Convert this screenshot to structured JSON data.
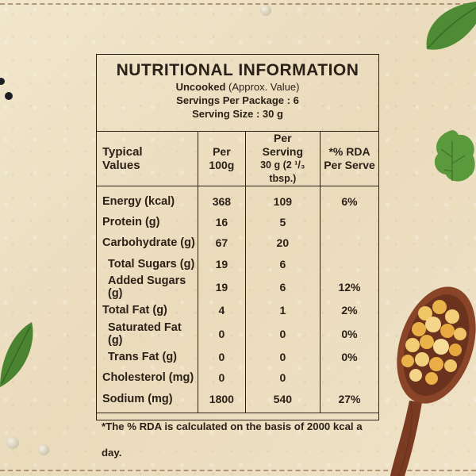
{
  "panel": {
    "title": "NUTRITIONAL INFORMATION",
    "uncooked_label": "Uncooked",
    "approx_label": "(Approx. Value)",
    "servings_per_package": "Servings Per Package : 6",
    "serving_size": "Serving Size : 30 g"
  },
  "table": {
    "headers": {
      "typical_line1": "Typical",
      "typical_line2": "Values",
      "per100_line1": "Per",
      "per100_line2": "100g",
      "serving_line1": "Per",
      "serving_line2": "Serving",
      "serving_line3": "30 g (2 ¹/₃ tbsp.)",
      "rda_line1": "*% RDA",
      "rda_line2": "Per Serve"
    },
    "rows": [
      {
        "label": "Energy (kcal)",
        "per100": "368",
        "serving": "109",
        "rda": "6%"
      },
      {
        "label": "Protein (g)",
        "per100": "16",
        "serving": "5",
        "rda": ""
      },
      {
        "label": "Carbohydrate (g)",
        "per100": "67",
        "serving": "20",
        "rda": ""
      },
      {
        "label": "Total Sugars (g)",
        "per100": "19",
        "serving": "6",
        "rda": ""
      },
      {
        "label": "Added Sugars (g)",
        "per100": "19",
        "serving": "6",
        "rda": "12%"
      },
      {
        "label": "Total Fat (g)",
        "per100": "4",
        "serving": "1",
        "rda": "2%"
      },
      {
        "label": "Saturated Fat (g)",
        "per100": "0",
        "serving": "0",
        "rda": "0%"
      },
      {
        "label": "Trans Fat (g)",
        "per100": "0",
        "serving": "0",
        "rda": "0%"
      },
      {
        "label": "Cholesterol (mg)",
        "per100": "0",
        "serving": "0",
        "rda": ""
      },
      {
        "label": "Sodium (mg)",
        "per100": "1800",
        "serving": "540",
        "rda": "27%"
      }
    ],
    "footnote": "*The % RDA is calculated on the basis of 2000 kcal a day."
  },
  "decor": {
    "icons": [
      "basil-leaf-icon",
      "coriander-leaf-icon",
      "wooden-spoon-icon",
      "split-pea-icon",
      "pepper-bead-icon"
    ],
    "colors": {
      "background": "#efe3c8",
      "ink": "#2b2118",
      "leaf": "#5a8a3a",
      "spoon": "#7a3b22",
      "pea": "#eab34a"
    }
  }
}
